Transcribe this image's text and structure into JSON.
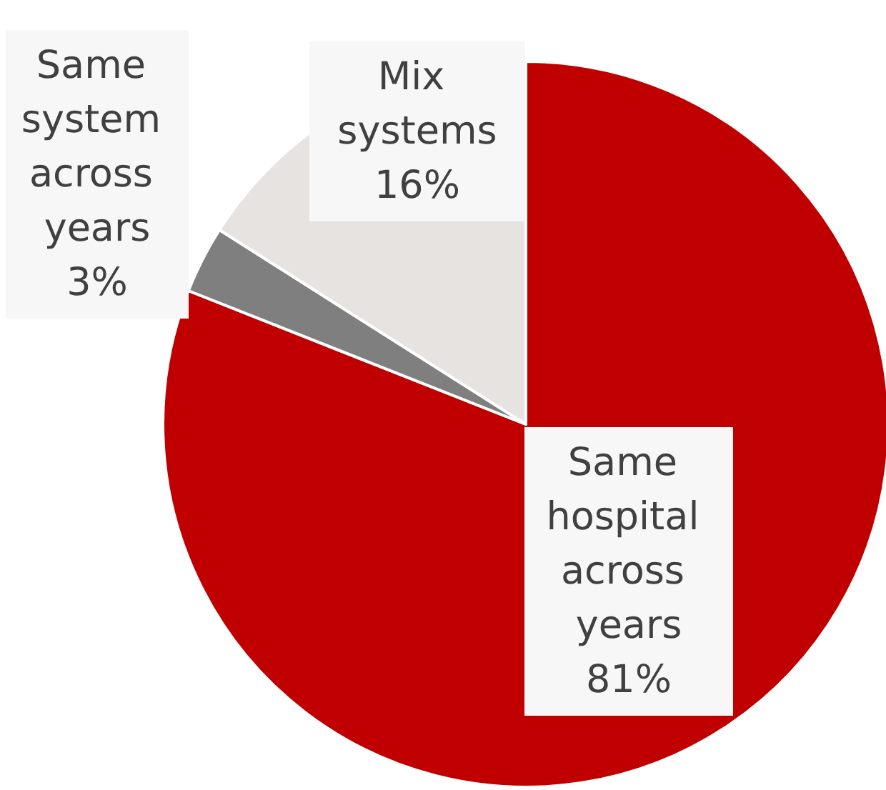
{
  "chart_data": {
    "type": "pie",
    "categories": [
      "Same hospital across years",
      "Same system across years",
      "Mix systems"
    ],
    "values": [
      81,
      3,
      16
    ],
    "value_labels": [
      "81%",
      "3%",
      "16%"
    ],
    "colors": [
      "#c00000",
      "#7f7f7f",
      "#e7e3e1"
    ]
  }
}
